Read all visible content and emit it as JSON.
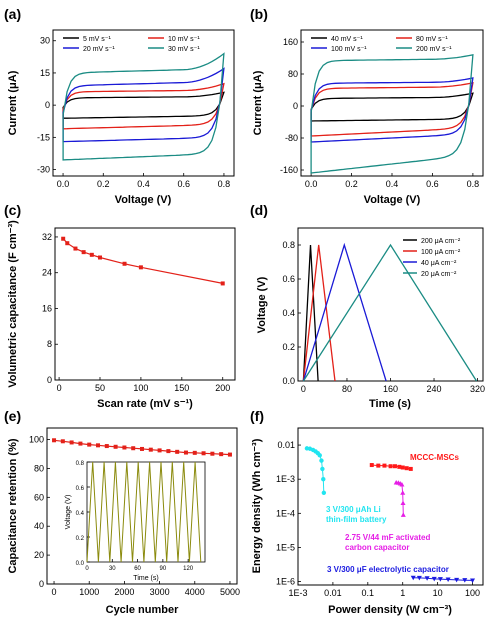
{
  "chart_data": [
    {
      "panel": "(a)",
      "type": "line",
      "xlabel": "Voltage (V)",
      "ylabel": "Current (μA)",
      "xlim": [
        -0.05,
        0.85
      ],
      "ylim": [
        -33,
        35
      ],
      "xticks": [
        "0.0",
        "0.2",
        "0.4",
        "0.6",
        "0.8"
      ],
      "yticks": [
        "-30",
        "-15",
        "0",
        "15",
        "30"
      ],
      "xtick_values": [
        0,
        0.2,
        0.4,
        0.6,
        0.8
      ],
      "ytick_values": [
        -30,
        -15,
        0,
        15,
        30
      ],
      "legend": "top, two columns",
      "series": [
        {
          "name": "5 mV s⁻¹",
          "color": "#000000",
          "cv": {
            "top": 4,
            "top_slope": 1.5,
            "bot": -5.5,
            "bot_slope": 1.2,
            "end_top": 6,
            "end_bot": 0
          }
        },
        {
          "name": "10 mV s⁻¹",
          "color": "#e32119",
          "cv": {
            "top": 7,
            "top_slope": 2,
            "bot": -10,
            "bot_slope": 2,
            "end_top": 10,
            "end_bot": -2
          }
        },
        {
          "name": "20 mV s⁻¹",
          "color": "#1a1ad6",
          "cv": {
            "top": 11,
            "top_slope": 5,
            "bot": -16,
            "bot_slope": 2,
            "end_top": 17,
            "end_bot": -7
          }
        },
        {
          "name": "30 mV s⁻¹",
          "color": "#1b8c84",
          "cv": {
            "top": 17,
            "top_slope": 5,
            "bot": -24,
            "bot_slope": 3,
            "end_top": 24,
            "end_bot": -14
          }
        }
      ]
    },
    {
      "panel": "(b)",
      "type": "line",
      "xlabel": "Voltage (V)",
      "ylabel": "Current (μA)",
      "xlim": [
        -0.05,
        0.85
      ],
      "ylim": [
        -175,
        190
      ],
      "xticks": [
        "0.0",
        "0.2",
        "0.4",
        "0.6",
        "0.8"
      ],
      "yticks": [
        "-160",
        "-80",
        "0",
        "80",
        "160"
      ],
      "xtick_values": [
        0,
        0.2,
        0.4,
        0.6,
        0.8
      ],
      "ytick_values": [
        -160,
        -80,
        0,
        80,
        160
      ],
      "legend": "top, two columns",
      "series": [
        {
          "name": "40 mV s⁻¹",
          "color": "#000000",
          "cv": {
            "top": 22,
            "top_slope": 8,
            "bot": -35,
            "bot_slope": 5,
            "end_top": 32,
            "end_bot": 5
          }
        },
        {
          "name": "80 mV s⁻¹",
          "color": "#e32119",
          "cv": {
            "top": 48,
            "top_slope": 10,
            "bot": -65,
            "bot_slope": 20,
            "end_top": 58,
            "end_bot": -20
          }
        },
        {
          "name": "100 mV s⁻¹",
          "color": "#1a1ad6",
          "cv": {
            "top": 60,
            "top_slope": 8,
            "bot": -80,
            "bot_slope": 20,
            "end_top": 70,
            "end_bot": -30
          }
        },
        {
          "name": "200 mV s⁻¹",
          "color": "#1b8c84",
          "cv": {
            "top": 118,
            "top_slope": 12,
            "bot": -145,
            "bot_slope": 45,
            "end_top": 128,
            "end_bot": -80
          }
        }
      ]
    },
    {
      "panel": "(c)",
      "type": "line",
      "xlabel": "Scan rate (mV s⁻¹)",
      "ylabel": "Volumetric capacitance (F cm⁻³)",
      "xlim": [
        -5,
        215
      ],
      "ylim": [
        0,
        34
      ],
      "xticks": [
        "0",
        "50",
        "100",
        "150",
        "200"
      ],
      "yticks": [
        "0",
        "8",
        "16",
        "24",
        "32"
      ],
      "xtick_values": [
        0,
        50,
        100,
        150,
        200
      ],
      "ytick_values": [
        0,
        8,
        16,
        24,
        32
      ],
      "series": [
        {
          "color": "#e32119",
          "x": [
            5,
            10,
            20,
            30,
            40,
            50,
            80,
            100,
            200
          ],
          "y": [
            31.6,
            30.6,
            29.4,
            28.6,
            28,
            27.4,
            26,
            25.2,
            21.6
          ]
        }
      ]
    },
    {
      "panel": "(d)",
      "type": "line",
      "xlabel": "Time (s)",
      "ylabel": "Voltage (V)",
      "xlim": [
        -10,
        330
      ],
      "ylim": [
        0,
        0.9
      ],
      "xticks": [
        "0",
        "80",
        "160",
        "240",
        "320"
      ],
      "yticks": [
        "0.0",
        "0.2",
        "0.4",
        "0.6",
        "0.8"
      ],
      "xtick_values": [
        0,
        80,
        160,
        240,
        320
      ],
      "ytick_values": [
        0,
        0.2,
        0.4,
        0.6,
        0.8
      ],
      "legend": "top-right",
      "series": [
        {
          "name": "200 μA cm⁻²",
          "color": "#000000",
          "x": [
            0,
            13,
            27
          ],
          "y": [
            0,
            0.8,
            0
          ]
        },
        {
          "name": "100 μA cm⁻²",
          "color": "#e32119",
          "x": [
            0,
            28,
            58
          ],
          "y": [
            0,
            0.8,
            0
          ]
        },
        {
          "name": "40 μA cm⁻²",
          "color": "#1a1ad6",
          "x": [
            0,
            75,
            152
          ],
          "y": [
            0,
            0.8,
            0
          ]
        },
        {
          "name": "20 μA cm⁻²",
          "color": "#1b8c84",
          "x": [
            0,
            160,
            318
          ],
          "y": [
            0,
            0.8,
            0
          ]
        }
      ]
    },
    {
      "panel": "(e)",
      "type": "line",
      "xlabel": "Cycle number",
      "ylabel": "Capacitance retention (%)",
      "xlim": [
        -200,
        5200
      ],
      "ylim": [
        0,
        108
      ],
      "xticks": [
        "0",
        "1000",
        "2000",
        "3000",
        "4000",
        "5000"
      ],
      "yticks": [
        "0",
        "20",
        "40",
        "60",
        "80",
        "100"
      ],
      "xtick_values": [
        0,
        1000,
        2000,
        3000,
        4000,
        5000
      ],
      "ytick_values": [
        0,
        20,
        40,
        60,
        80,
        100
      ],
      "series": [
        {
          "color": "#e32119",
          "x": [
            0,
            250,
            500,
            750,
            1000,
            1250,
            1500,
            1750,
            2000,
            2250,
            2500,
            2750,
            3000,
            3250,
            3500,
            3750,
            4000,
            4250,
            4500,
            4750,
            5000
          ],
          "y": [
            99.5,
            98.8,
            98,
            97.2,
            96.5,
            96,
            95.5,
            95,
            94.5,
            94,
            93.5,
            93,
            92.5,
            92,
            91.5,
            91,
            90.8,
            90.5,
            90.2,
            89.9,
            89.6
          ]
        }
      ],
      "inset": {
        "type": "line",
        "xlabel": "Time (s)",
        "ylabel": "Voltage (V)",
        "xlim": [
          0,
          140
        ],
        "ylim": [
          0,
          0.8
        ],
        "xticks": [
          "0",
          "30",
          "60",
          "90",
          "120"
        ],
        "yticks": [
          "0.0",
          "0.2",
          "0.4",
          "0.6",
          "0.8"
        ],
        "xtick_values": [
          0,
          30,
          60,
          90,
          120
        ],
        "ytick_values": [
          0,
          0.2,
          0.4,
          0.6,
          0.8
        ],
        "period": 13.5,
        "cycles": 10,
        "vmax": 0.8,
        "color": "#8b8b0e"
      }
    },
    {
      "panel": "(f)",
      "type": "scatter",
      "xlabel": "Power density (W cm⁻³)",
      "ylabel": "Energy density (Wh cm⁻³)",
      "xscale": "log",
      "yscale": "log",
      "xlim_log": [
        -3,
        2.3
      ],
      "ylim_log": [
        -6.1,
        -1.5
      ],
      "xticks": [
        "1E-3",
        "0.01",
        "0.1",
        "1",
        "10",
        "100"
      ],
      "yticks": [
        "1E-6",
        "1E-5",
        "1E-4",
        "1E-3",
        "0.01"
      ],
      "xtick_exps": [
        -3,
        -2,
        -1,
        0,
        1,
        2
      ],
      "ytick_exps": [
        -6,
        -5,
        -4,
        -3,
        -2
      ],
      "series": [
        {
          "name": "MCCC-MSCs",
          "color": "#ff1a1a",
          "x": [
            0.13,
            0.2,
            0.3,
            0.45,
            0.6,
            0.8,
            1.0,
            1.3,
            1.7
          ],
          "y": [
            0.0026,
            0.0025,
            0.0025,
            0.0024,
            0.0024,
            0.0023,
            0.0022,
            0.0021,
            0.002
          ]
        },
        {
          "name": "3 V/300 μAh Li thin-film battery",
          "color": "#21e5f0",
          "x": [
            0.0018,
            0.0022,
            0.0027,
            0.0032,
            0.0037,
            0.0042,
            0.0047,
            0.005,
            0.0053,
            0.0055
          ],
          "y": [
            0.008,
            0.0078,
            0.0072,
            0.0065,
            0.0058,
            0.005,
            0.0035,
            0.002,
            0.001,
            0.0004
          ]
        },
        {
          "name": "2.75 V/44 mF activated carbon capacitor",
          "color": "#e61ee6",
          "x": [
            0.65,
            0.75,
            0.85,
            0.95,
            1.0,
            1.02,
            1.04
          ],
          "y": [
            0.0008,
            0.00079,
            0.00075,
            0.0007,
            0.0004,
            0.0002,
            9e-05
          ]
        },
        {
          "name": "3 V/300 μF electrolytic capacitor",
          "color": "#1a1ae0",
          "x": [
            2,
            3,
            5,
            8,
            12,
            20,
            35,
            60,
            100
          ],
          "y": [
            1.3e-06,
            1.28e-06,
            1.25e-06,
            1.2e-06,
            1.18e-06,
            1.15e-06,
            1.12e-06,
            1.1e-06,
            1.08e-06
          ]
        }
      ],
      "annotations": [
        {
          "text": "MCCC-MSCs",
          "color": "#ff1a1a"
        },
        {
          "text": "3 V/300 μAh Li",
          "color": "#21e5f0"
        },
        {
          "text": "thin-film battery",
          "color": "#21e5f0"
        },
        {
          "text": "2.75 V/44 mF activated",
          "color": "#e61ee6"
        },
        {
          "text": "carbon capacitor",
          "color": "#e61ee6"
        },
        {
          "text": "3 V/300 μF electrolytic capacitor",
          "color": "#1a1ae0"
        }
      ]
    }
  ]
}
